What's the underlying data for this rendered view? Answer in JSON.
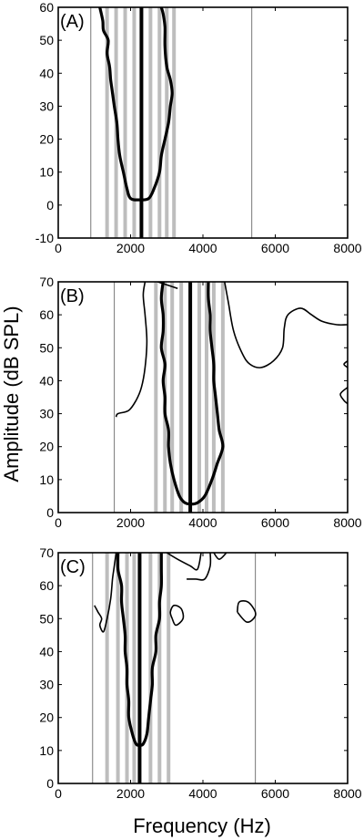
{
  "figure": {
    "ylabel": "Amplitude (dB SPL)",
    "xlabel": "Frequency (Hz)"
  },
  "chart_data": [
    {
      "type": "line",
      "panel_label": "(A)",
      "xlim": [
        0,
        8000
      ],
      "ylim": [
        -10,
        60
      ],
      "x_ticks": [
        0,
        2000,
        4000,
        6000,
        8000
      ],
      "y_ticks": [
        -10,
        0,
        10,
        20,
        30,
        40,
        50,
        60
      ],
      "center_frequency": 2300,
      "gray_bands": [
        1350,
        1600,
        1850,
        2100,
        2550,
        2800,
        3000,
        3200
      ],
      "thin_lines": [
        900,
        5350
      ],
      "thick_contour": [
        [
          2000,
          2
        ],
        [
          1900,
          5
        ],
        [
          1800,
          10
        ],
        [
          1700,
          15
        ],
        [
          1650,
          20
        ],
        [
          1620,
          25
        ],
        [
          1550,
          30
        ],
        [
          1500,
          34
        ],
        [
          1450,
          38
        ],
        [
          1420,
          42
        ],
        [
          1350,
          46
        ],
        [
          1380,
          50
        ],
        [
          1250,
          53
        ],
        [
          1230,
          56
        ],
        [
          1150,
          60
        ]
      ],
      "thick_contour_right": [
        [
          2500,
          2
        ],
        [
          2650,
          5
        ],
        [
          2800,
          10
        ],
        [
          2850,
          15
        ],
        [
          2950,
          20
        ],
        [
          3050,
          25
        ],
        [
          3100,
          30
        ],
        [
          3150,
          34
        ],
        [
          3100,
          38
        ],
        [
          3000,
          42
        ],
        [
          2950,
          48
        ],
        [
          2950,
          54
        ],
        [
          2900,
          58
        ],
        [
          2850,
          60
        ]
      ]
    },
    {
      "type": "line",
      "panel_label": "(B)",
      "xlim": [
        0,
        8000
      ],
      "ylim": [
        0,
        70
      ],
      "x_ticks": [
        0,
        2000,
        4000,
        6000,
        8000
      ],
      "y_ticks": [
        0,
        10,
        20,
        30,
        40,
        50,
        60,
        70
      ],
      "center_frequency": 3650,
      "gray_bands": [
        2700,
        2950,
        3150,
        3400,
        3900,
        4100,
        4300,
        4550
      ],
      "thin_lines": [
        1550
      ],
      "thick_contour": [
        [
          3500,
          3
        ],
        [
          3350,
          5
        ],
        [
          3200,
          10
        ],
        [
          3100,
          15
        ],
        [
          3050,
          20
        ],
        [
          3050,
          25
        ],
        [
          2950,
          30
        ],
        [
          2950,
          35
        ],
        [
          2900,
          40
        ],
        [
          2950,
          45
        ],
        [
          2850,
          50
        ],
        [
          2900,
          55
        ],
        [
          2900,
          60
        ],
        [
          2850,
          65
        ],
        [
          2900,
          70
        ]
      ],
      "thick_contour_right": [
        [
          3850,
          3
        ],
        [
          4050,
          5
        ],
        [
          4250,
          10
        ],
        [
          4400,
          15
        ],
        [
          4550,
          20
        ],
        [
          4450,
          25
        ],
        [
          4400,
          30
        ],
        [
          4350,
          35
        ],
        [
          4300,
          40
        ],
        [
          4300,
          45
        ],
        [
          4250,
          50
        ],
        [
          4200,
          55
        ],
        [
          4200,
          60
        ],
        [
          4150,
          65
        ],
        [
          4150,
          70
        ]
      ],
      "thin_contours": [
        [
          [
            1600,
            29
          ],
          [
            1650,
            30
          ],
          [
            1950,
            31
          ],
          [
            2150,
            34
          ],
          [
            2300,
            38
          ],
          [
            2400,
            44
          ],
          [
            2450,
            52
          ],
          [
            2400,
            60
          ],
          [
            2350,
            66
          ],
          [
            2400,
            70
          ]
        ],
        [
          [
            2750,
            70
          ],
          [
            3300,
            68
          ]
        ],
        [
          [
            4600,
            70
          ],
          [
            4700,
            64
          ],
          [
            4850,
            55
          ],
          [
            5100,
            48
          ],
          [
            5300,
            45
          ],
          [
            5600,
            44
          ],
          [
            5950,
            46
          ],
          [
            6200,
            50
          ],
          [
            6250,
            56
          ],
          [
            6350,
            60
          ],
          [
            6700,
            62
          ],
          [
            7000,
            60
          ],
          [
            7300,
            58
          ],
          [
            7700,
            57
          ],
          [
            8000,
            57
          ]
        ],
        [
          [
            8000,
            38
          ],
          [
            7800,
            36
          ],
          [
            7900,
            34
          ],
          [
            8000,
            33
          ]
        ],
        [
          [
            8000,
            46
          ],
          [
            7900,
            45
          ],
          [
            8000,
            44
          ]
        ]
      ]
    },
    {
      "type": "line",
      "panel_label": "(C)",
      "xlim": [
        0,
        8000
      ],
      "ylim": [
        0,
        70
      ],
      "x_ticks": [
        0,
        2000,
        4000,
        6000,
        8000
      ],
      "y_ticks": [
        0,
        10,
        20,
        30,
        40,
        50,
        60,
        70
      ],
      "center_frequency": 2250,
      "gray_bands": [
        1350,
        1650,
        1900,
        2100,
        2550,
        2800,
        3050
      ],
      "thin_lines": [
        950,
        5450
      ],
      "thick_contour": [
        [
          2150,
          12
        ],
        [
          2050,
          15
        ],
        [
          1950,
          20
        ],
        [
          1950,
          25
        ],
        [
          1900,
          30
        ],
        [
          1900,
          35
        ],
        [
          1850,
          40
        ],
        [
          1850,
          45
        ],
        [
          1800,
          50
        ],
        [
          1750,
          55
        ],
        [
          1750,
          60
        ],
        [
          1650,
          65
        ],
        [
          1650,
          70
        ]
      ],
      "thick_contour_right": [
        [
          2350,
          12
        ],
        [
          2450,
          15
        ],
        [
          2500,
          20
        ],
        [
          2550,
          25
        ],
        [
          2600,
          30
        ],
        [
          2600,
          35
        ],
        [
          2700,
          40
        ],
        [
          2700,
          45
        ],
        [
          2800,
          50
        ],
        [
          2800,
          55
        ],
        [
          2850,
          60
        ],
        [
          2850,
          65
        ],
        [
          2850,
          70
        ]
      ],
      "thin_contours": [
        [
          [
            1000,
            54
          ],
          [
            1100,
            52
          ],
          [
            1200,
            50
          ],
          [
            1150,
            48
          ],
          [
            1250,
            46
          ],
          [
            1350,
            50
          ],
          [
            1450,
            56
          ],
          [
            1500,
            62
          ],
          [
            1550,
            66
          ],
          [
            1600,
            70
          ]
        ],
        [
          [
            3000,
            70
          ],
          [
            3300,
            68
          ],
          [
            3650,
            66
          ],
          [
            3850,
            65
          ],
          [
            3950,
            70
          ]
        ],
        [
          [
            4300,
            70
          ],
          [
            4450,
            68
          ],
          [
            4650,
            70
          ]
        ],
        [
          [
            3550,
            62
          ],
          [
            3800,
            62
          ],
          [
            4050,
            62
          ],
          [
            4200,
            66
          ],
          [
            4200,
            70
          ]
        ],
        [
          [
            3150,
            50
          ],
          [
            3250,
            48
          ],
          [
            3450,
            50
          ],
          [
            3400,
            53
          ],
          [
            3200,
            54
          ],
          [
            3100,
            52
          ],
          [
            3150,
            50
          ]
        ],
        [
          [
            4950,
            52
          ],
          [
            5200,
            49
          ],
          [
            5400,
            50
          ],
          [
            5450,
            52
          ],
          [
            5250,
            55
          ],
          [
            5000,
            55
          ],
          [
            4950,
            52
          ]
        ]
      ]
    }
  ]
}
